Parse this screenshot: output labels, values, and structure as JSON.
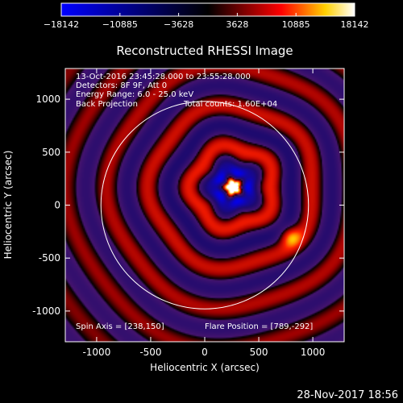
{
  "chart_data": {
    "type": "heatmap",
    "title": "Reconstructed RHESSI Image",
    "xlabel": "Heliocentric X (arcsec)",
    "ylabel": "Heliocentric Y (arcsec)",
    "xlim": [
      -1290,
      1290
    ],
    "ylim": [
      -1290,
      1290
    ],
    "x_ticks": [
      -1000,
      -500,
      0,
      500,
      1000
    ],
    "y_ticks": [
      -1000,
      -500,
      0,
      500,
      1000
    ],
    "colorbar": {
      "range": [
        -18142,
        18142
      ],
      "tick_values": [
        -18142,
        -10885,
        -3628,
        3628,
        10885,
        18142
      ],
      "tick_labels": [
        "−18142",
        "−10885",
        "−3628",
        "3628",
        "10885",
        "18142"
      ],
      "colors": [
        "#0000ff",
        "#000000",
        "#ff0000",
        "#ffd000",
        "#ffffff"
      ]
    },
    "annotations": {
      "time_range": "13-Oct-2016 23:45:28.000 to 23:55:28.000",
      "detectors": "Detectors: 8F 9F, Att 0",
      "energy": "Energy Range: 6.0 - 25.0 keV",
      "method": "Back Projection",
      "counts": "Total counts: 1.60E+04",
      "spin_axis": "Spin Axis = [238,150]",
      "flare_position": "Flare Position = [789,-292]"
    },
    "solar_radius_arcsec": 960,
    "sources": [
      {
        "x": 260,
        "y": 170,
        "amp": 18142,
        "kind": "central-peak"
      },
      {
        "x": 789,
        "y": -292,
        "amp": 7500,
        "kind": "flare"
      }
    ],
    "grid": false
  },
  "footer": {
    "timestamp": "28-Nov-2017 18:56"
  },
  "colors": {
    "background": "#000000",
    "axes": "#ffffff",
    "limb_circle": "#ffffff",
    "source_marker": "#ffffff"
  }
}
